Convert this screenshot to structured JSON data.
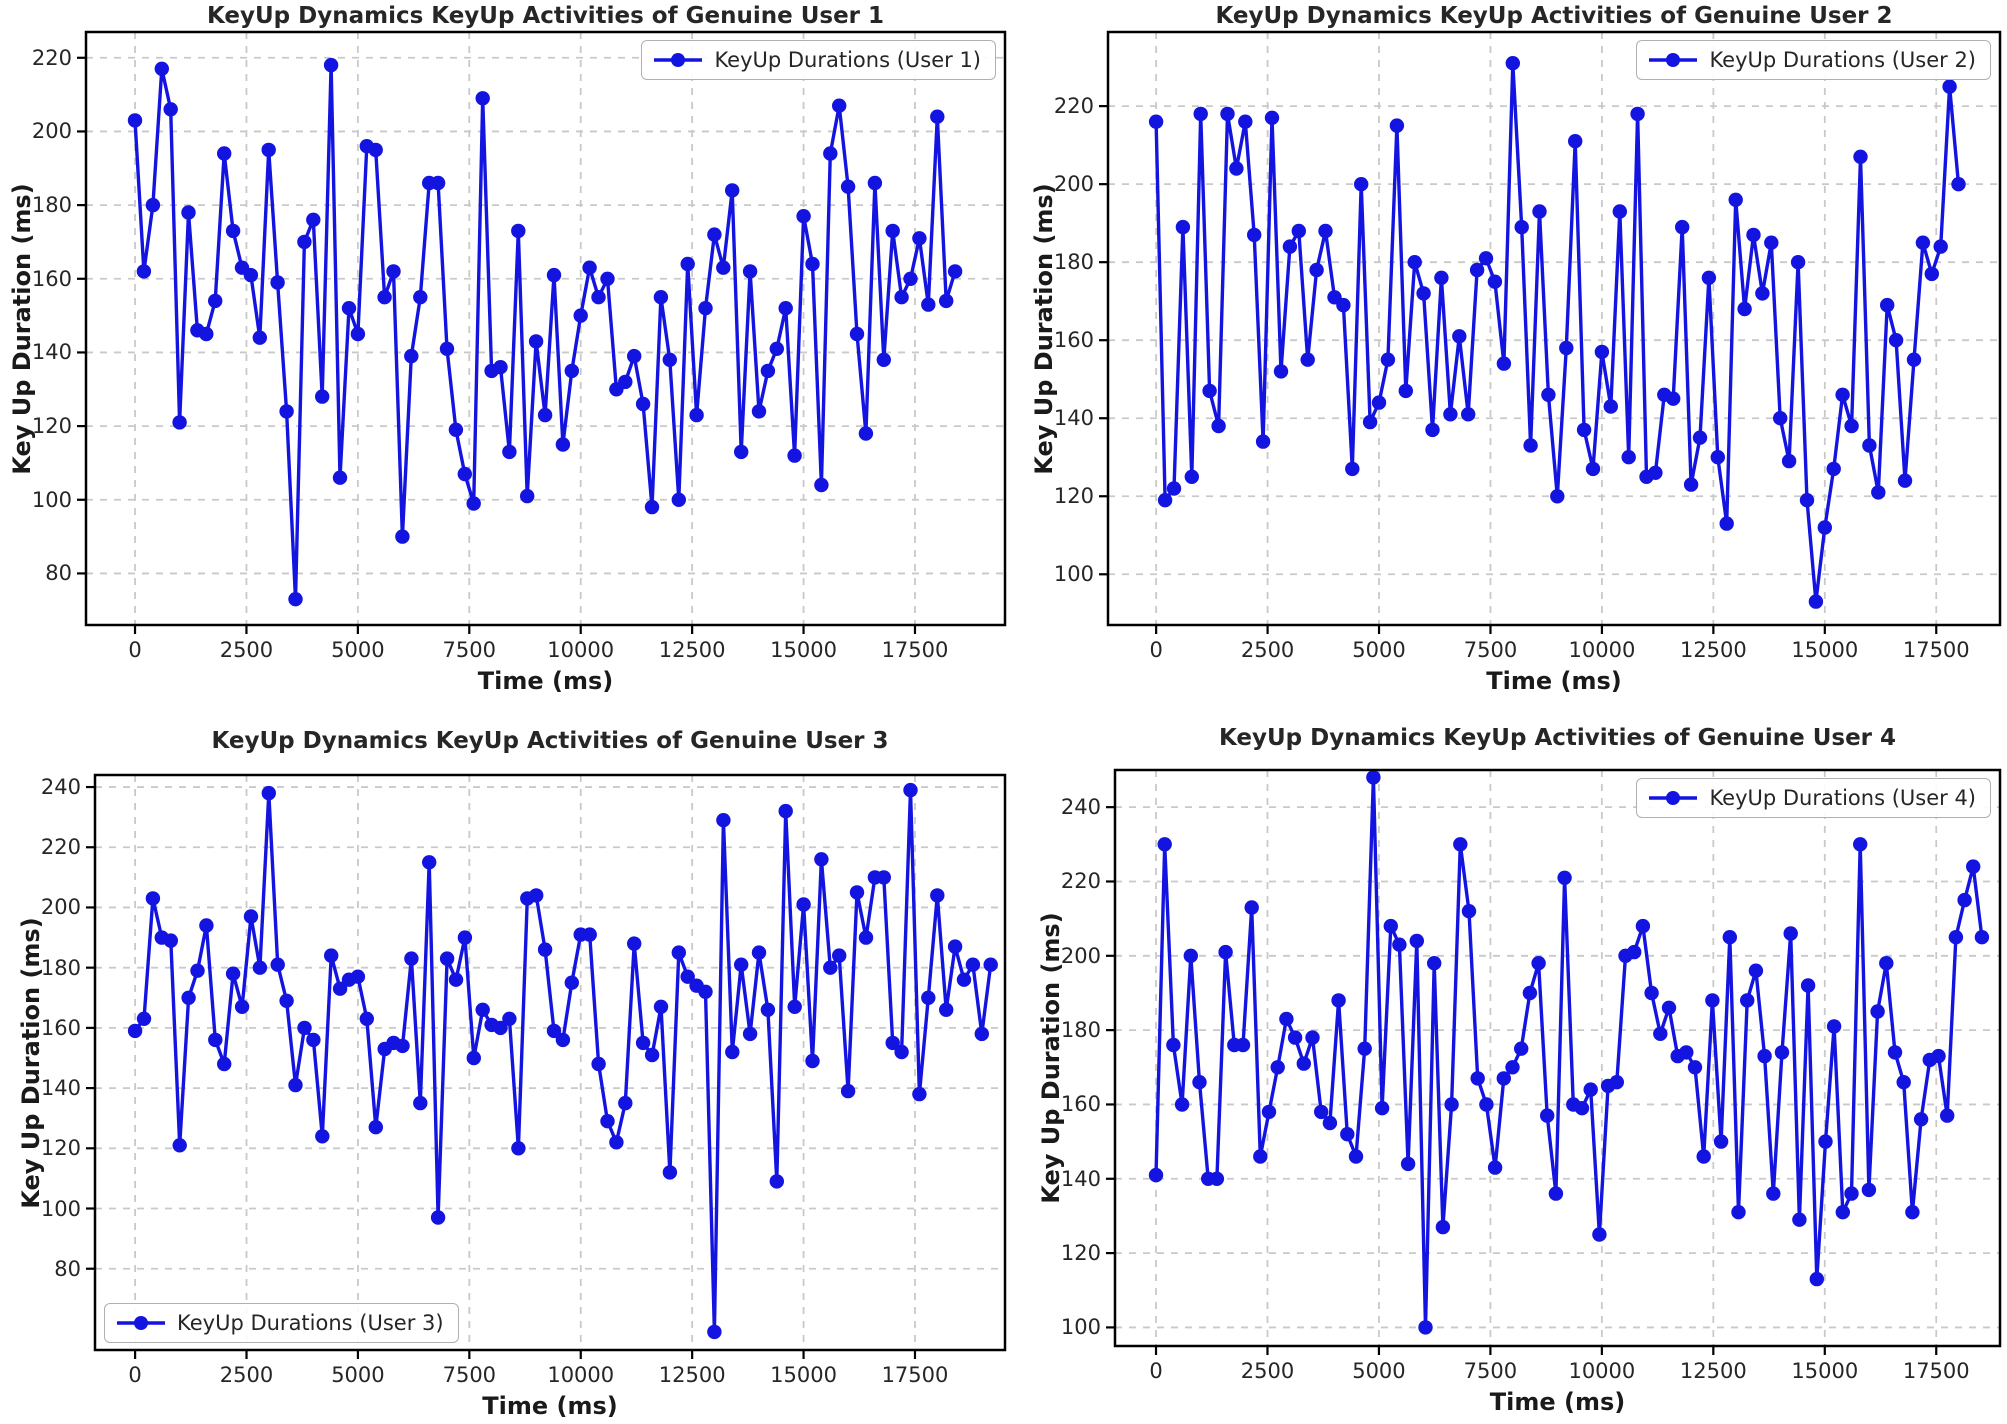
{
  "figure": {
    "background": "#ffffff",
    "line_color": "#1414e0",
    "grid_color": "#c9c9c9",
    "spine_color": "#000000",
    "text_color": "#262626"
  },
  "chart_data": [
    {
      "type": "line",
      "title": "KeyUp Dynamics KeyUp Activities of Genuine User 1",
      "legend_label": "KeyUp Durations (User 1)",
      "legend_pos": "top-right",
      "xlabel": "Time (ms)",
      "ylabel": "Key Up Duration (ms)",
      "x_ticks": [
        0,
        2500,
        5000,
        7500,
        10000,
        12500,
        15000,
        17500
      ],
      "y_ticks": [
        80,
        100,
        120,
        140,
        160,
        180,
        200,
        220
      ],
      "xlim": [
        -1100,
        19520
      ],
      "ylim": [
        66,
        227
      ],
      "grid": true,
      "x_start": 0,
      "x_step_ms": 200,
      "values": [
        203,
        162,
        180,
        217,
        206,
        121,
        178,
        146,
        145,
        154,
        194,
        173,
        163,
        161,
        144,
        195,
        159,
        124,
        73,
        170,
        176,
        128,
        218,
        106,
        152,
        145,
        196,
        195,
        155,
        162,
        90,
        139,
        155,
        186,
        186,
        141,
        119,
        107,
        99,
        209,
        135,
        136,
        113,
        173,
        101,
        143,
        123,
        161,
        115,
        135,
        150,
        163,
        155,
        160,
        130,
        132,
        139,
        126,
        98,
        155,
        138,
        100,
        164,
        123,
        152,
        172,
        163,
        184,
        113,
        162,
        124,
        135,
        141,
        152,
        112,
        177,
        164,
        104,
        194,
        207,
        185,
        145,
        118,
        186,
        138,
        173,
        155,
        160,
        171,
        153,
        204,
        154,
        162
      ]
    },
    {
      "type": "line",
      "title": "KeyUp Dynamics KeyUp Activities of Genuine User 2",
      "legend_label": "KeyUp Durations (User 2)",
      "legend_pos": "top-right",
      "xlabel": "Time (ms)",
      "ylabel": "Key Up Duration (ms)",
      "x_ticks": [
        0,
        2500,
        5000,
        7500,
        10000,
        12500,
        15000,
        17500
      ],
      "y_ticks": [
        100,
        120,
        140,
        160,
        180,
        200,
        220
      ],
      "xlim": [
        -1080,
        18930
      ],
      "ylim": [
        87,
        239
      ],
      "grid": true,
      "x_start": 0,
      "x_step_ms": 200,
      "values": [
        216,
        119,
        122,
        189,
        125,
        218,
        147,
        138,
        218,
        204,
        216,
        187,
        134,
        217,
        152,
        184,
        188,
        155,
        178,
        188,
        171,
        169,
        127,
        200,
        139,
        144,
        155,
        215,
        147,
        180,
        172,
        137,
        176,
        141,
        161,
        141,
        178,
        181,
        175,
        154,
        231,
        189,
        133,
        193,
        146,
        120,
        158,
        211,
        137,
        127,
        157,
        143,
        193,
        130,
        218,
        125,
        126,
        146,
        145,
        189,
        123,
        135,
        176,
        130,
        113,
        196,
        168,
        187,
        172,
        185,
        140,
        129,
        180,
        119,
        93,
        112,
        127,
        146,
        138,
        207,
        133,
        121,
        169,
        160,
        124,
        155,
        185,
        177,
        184,
        225,
        200
      ]
    },
    {
      "type": "line",
      "title": "KeyUp Dynamics KeyUp Activities of Genuine User 3",
      "legend_label": "KeyUp Durations (User 3)",
      "legend_pos": "bottom-left",
      "xlabel": "Time (ms)",
      "ylabel": "Key Up Duration (ms)",
      "x_ticks": [
        0,
        2500,
        5000,
        7500,
        10000,
        12500,
        15000,
        17500
      ],
      "y_ticks": [
        80,
        100,
        120,
        140,
        160,
        180,
        200,
        220,
        240
      ],
      "xlim": [
        -900,
        19520
      ],
      "ylim": [
        53,
        244
      ],
      "grid": true,
      "x_start": 0,
      "x_step_ms": 200,
      "values": [
        159,
        163,
        203,
        190,
        189,
        121,
        170,
        179,
        194,
        156,
        148,
        178,
        167,
        197,
        180,
        238,
        181,
        169,
        141,
        160,
        156,
        124,
        184,
        173,
        176,
        177,
        163,
        127,
        153,
        155,
        154,
        183,
        135,
        215,
        97,
        183,
        176,
        190,
        150,
        166,
        161,
        160,
        163,
        120,
        203,
        204,
        186,
        159,
        156,
        175,
        191,
        191,
        148,
        129,
        122,
        135,
        188,
        155,
        151,
        167,
        112,
        185,
        177,
        174,
        172,
        59,
        229,
        152,
        181,
        158,
        185,
        166,
        109,
        232,
        167,
        201,
        149,
        216,
        180,
        184,
        139,
        205,
        190,
        210,
        210,
        155,
        152,
        239,
        138,
        170,
        204,
        166,
        187,
        176,
        181,
        158,
        181
      ]
    },
    {
      "type": "line",
      "title": "KeyUp Dynamics KeyUp Activities of Genuine User 4",
      "legend_label": "KeyUp Durations (User 4)",
      "legend_pos": "top-right",
      "xlabel": "Time (ms)",
      "ylabel": "Key Up Duration (ms)",
      "x_ticks": [
        0,
        2500,
        5000,
        7500,
        10000,
        12500,
        15000,
        17500
      ],
      "y_ticks": [
        100,
        120,
        140,
        160,
        180,
        200,
        220,
        240
      ],
      "xlim": [
        -920,
        18930
      ],
      "ylim": [
        95,
        250
      ],
      "grid": true,
      "x_start": 0,
      "x_step_ms": 195,
      "values": [
        141,
        230,
        176,
        160,
        200,
        166,
        140,
        140,
        201,
        176,
        176,
        213,
        146,
        158,
        170,
        183,
        178,
        171,
        178,
        158,
        155,
        188,
        152,
        146,
        175,
        248,
        159,
        208,
        203,
        144,
        204,
        100,
        198,
        127,
        160,
        230,
        212,
        167,
        160,
        143,
        167,
        170,
        175,
        190,
        198,
        157,
        136,
        221,
        160,
        159,
        164,
        125,
        165,
        166,
        200,
        201,
        208,
        190,
        179,
        186,
        173,
        174,
        170,
        146,
        188,
        150,
        205,
        131,
        188,
        196,
        173,
        136,
        174,
        206,
        129,
        192,
        113,
        150,
        181,
        131,
        136,
        230,
        137,
        185,
        198,
        174,
        166,
        131,
        156,
        172,
        173,
        157,
        205,
        215,
        224,
        205
      ]
    }
  ]
}
